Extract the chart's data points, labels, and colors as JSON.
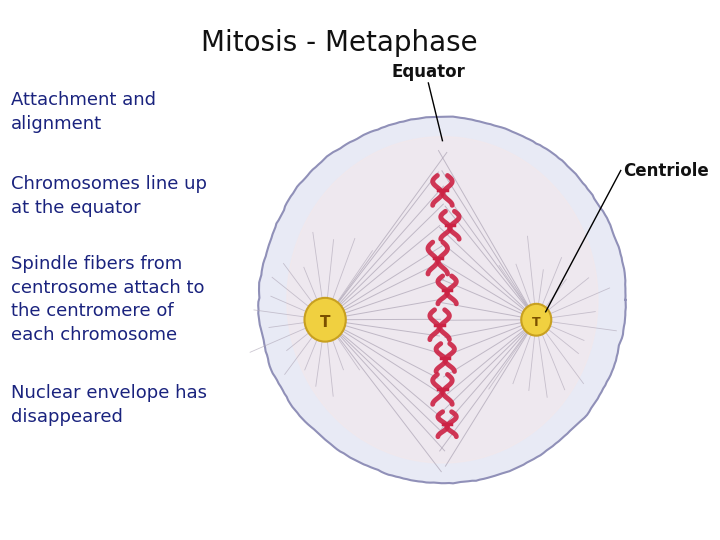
{
  "title": "Mitosis - Metaphase",
  "title_fontsize": 20,
  "title_color": "#111111",
  "background_color": "#ffffff",
  "bullet_texts": [
    "Attachment and\nalignment",
    "Chromosomes line up\nat the equator",
    "Spindle fibers from\ncentrosome attach to\nthe centromere of\neach chromosome",
    "Nuclear envelope has\ndisappeared"
  ],
  "bullet_color": "#1a237e",
  "bullet_fontsize": 13,
  "label_equator": "Equator",
  "label_centriole": "Centriole",
  "label_fontsize": 12,
  "label_fontweight": "bold"
}
